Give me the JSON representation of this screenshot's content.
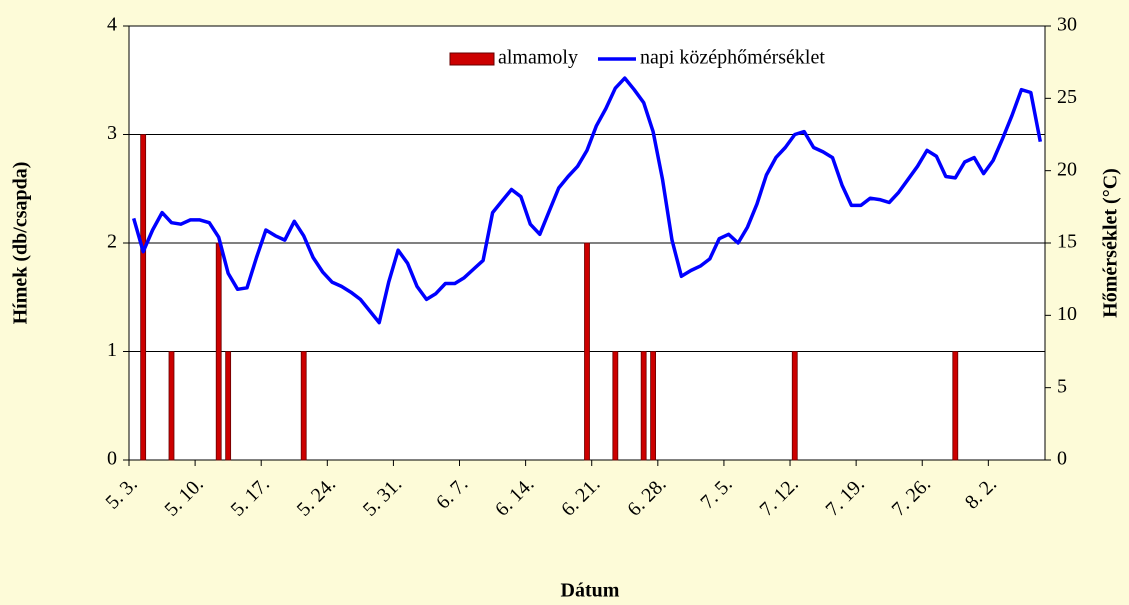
{
  "chart_data": {
    "type": "bar",
    "xlabel": "Dátum",
    "ylabel": "Hímek (db/csapda)",
    "y2label": "Hőmérséklet (°C)",
    "categories": [
      "5. 3.",
      null,
      null,
      null,
      null,
      null,
      null,
      "5. 10.",
      null,
      null,
      null,
      null,
      null,
      null,
      "5. 17.",
      null,
      null,
      null,
      null,
      null,
      null,
      "5. 24.",
      null,
      null,
      null,
      null,
      null,
      null,
      "5. 31.",
      null,
      null,
      null,
      null,
      null,
      null,
      "6. 7.",
      null,
      null,
      null,
      null,
      null,
      null,
      "6. 14.",
      null,
      null,
      null,
      null,
      null,
      null,
      "6. 21.",
      null,
      null,
      null,
      null,
      null,
      null,
      "6. 28.",
      null,
      null,
      null,
      null,
      null,
      null,
      "7. 5.",
      null,
      null,
      null,
      null,
      null,
      null,
      "7. 12.",
      null,
      null,
      null,
      null,
      null,
      null,
      "7. 19.",
      null,
      null,
      null,
      null,
      null,
      null,
      "7. 26.",
      null,
      null,
      null,
      null,
      null,
      null,
      "8. 2.",
      null,
      null,
      null,
      null,
      null
    ],
    "series": [
      {
        "name": "almamoly",
        "type": "bar",
        "color": "#cc0000",
        "axis": "y",
        "values": [
          0,
          3,
          0,
          0,
          1,
          0,
          0,
          0,
          0,
          2,
          1,
          0,
          0,
          0,
          0,
          0,
          0,
          0,
          1,
          0,
          0,
          0,
          0,
          0,
          0,
          0,
          0,
          0,
          0,
          0,
          0,
          0,
          0,
          0,
          0,
          0,
          0,
          0,
          0,
          0,
          0,
          0,
          0,
          0,
          0,
          0,
          0,
          0,
          2,
          0,
          0,
          1,
          0,
          0,
          1,
          1,
          0,
          0,
          0,
          0,
          0,
          0,
          0,
          0,
          0,
          0,
          0,
          0,
          0,
          0,
          1,
          0,
          0,
          0,
          0,
          0,
          0,
          0,
          0,
          0,
          0,
          0,
          0,
          0,
          0,
          0,
          0,
          1,
          0,
          0,
          0,
          0,
          0,
          0,
          0,
          0,
          0
        ]
      },
      {
        "name": "napi középhőmérséklet",
        "type": "line",
        "color": "#0000ff",
        "axis": "y2",
        "values": [
          16.7,
          14.4,
          15.9,
          17.1,
          16.4,
          16.3,
          16.6,
          16.6,
          16.4,
          15.4,
          12.9,
          11.8,
          11.9,
          14.0,
          15.9,
          15.5,
          15.2,
          16.5,
          15.5,
          14.0,
          13.0,
          12.3,
          12.0,
          11.6,
          11.1,
          10.3,
          9.5,
          12.3,
          14.5,
          13.6,
          12.0,
          11.1,
          11.5,
          12.2,
          12.2,
          12.6,
          13.2,
          13.8,
          17.1,
          17.9,
          18.7,
          18.2,
          16.3,
          15.6,
          17.2,
          18.8,
          19.6,
          20.3,
          21.4,
          23.1,
          24.3,
          25.7,
          26.4,
          25.6,
          24.7,
          22.7,
          19.4,
          15.2,
          12.7,
          13.1,
          13.4,
          13.9,
          15.3,
          15.6,
          15.0,
          16.1,
          17.7,
          19.7,
          20.9,
          21.6,
          22.5,
          22.7,
          21.6,
          21.3,
          20.9,
          19.0,
          17.6,
          17.6,
          18.1,
          18.0,
          17.8,
          18.5,
          19.4,
          20.3,
          21.4,
          21.0,
          19.6,
          19.5,
          20.6,
          20.9,
          19.8,
          20.7,
          22.2,
          23.8,
          25.6,
          25.4,
          22.0
        ]
      }
    ],
    "ylim": [
      0,
      4
    ],
    "yticks": [
      0,
      1,
      2,
      3,
      4
    ],
    "y2lim": [
      0,
      30
    ],
    "y2ticks": [
      0,
      5,
      10,
      15,
      20,
      25,
      30
    ],
    "grid": true
  }
}
